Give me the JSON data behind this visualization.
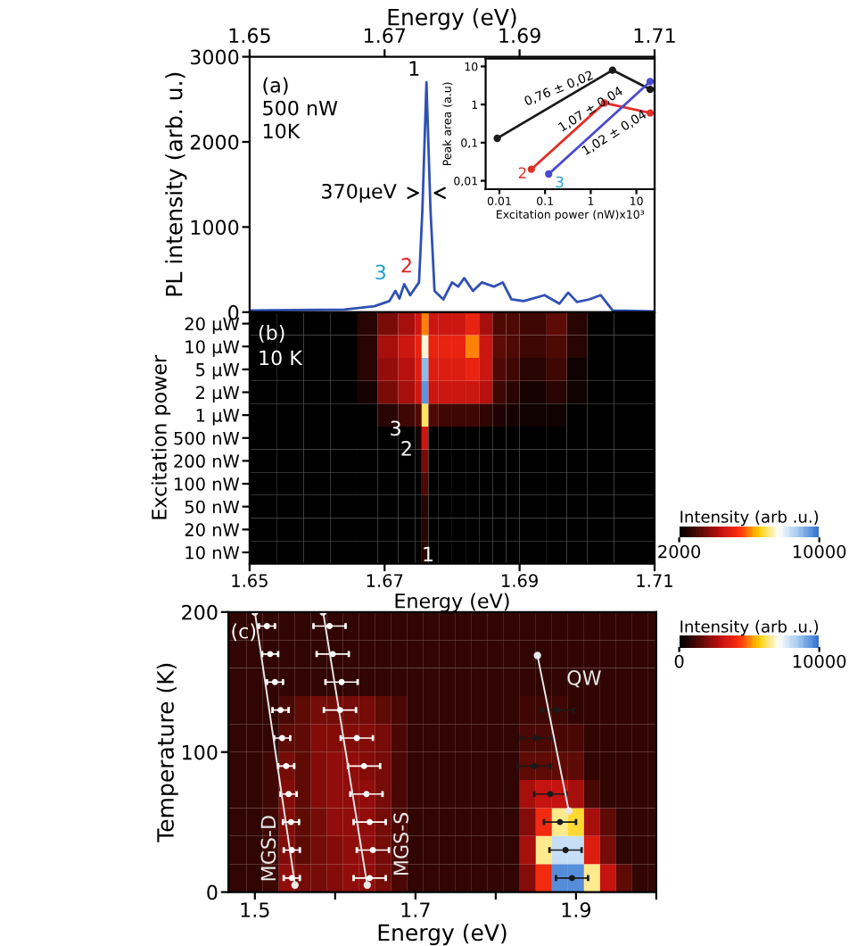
{
  "chart_data": [
    {
      "type": "line",
      "xlabel": "Energy (eV)",
      "xlim": [
        1.65,
        1.71
      ],
      "xticks": [
        1.65,
        1.67,
        1.69,
        1.71
      ],
      "ylabel": "PL intensity (arb. u.)",
      "ylim": [
        0,
        3000
      ],
      "yticks": [
        0,
        1000,
        2000,
        3000
      ],
      "series": [
        {
          "color": "#2f50b4",
          "x": [
            1.65,
            1.664,
            1.6685,
            1.6707,
            1.6716,
            1.6722,
            1.6729,
            1.6738,
            1.6751,
            1.6756,
            1.6762,
            1.6768,
            1.6774,
            1.6787,
            1.68,
            1.6809,
            1.6818,
            1.6831,
            1.6844,
            1.6862,
            1.6875,
            1.6888,
            1.6906,
            1.6937,
            1.6959,
            1.6972,
            1.6985,
            1.7003,
            1.702,
            1.7038,
            1.71
          ],
          "values": [
            20,
            30,
            70,
            130,
            250,
            160,
            330,
            200,
            350,
            1200,
            2700,
            1200,
            250,
            150,
            350,
            300,
            400,
            250,
            350,
            300,
            350,
            150,
            130,
            200,
            100,
            230,
            120,
            150,
            200,
            20,
            10
          ]
        }
      ],
      "annotations": [
        "(a)",
        "500 nW",
        "10K",
        {
          "text": "1",
          "x": 1.6762,
          "y": 2700
        },
        {
          "text": "2",
          "x": 1.6729,
          "y": 330
        },
        {
          "text": "3",
          "x": 1.6716,
          "y": 250
        },
        {
          "text": "370μeV",
          "x": 1.6762,
          "y": 1400
        }
      ]
    },
    {
      "type": "line",
      "log": "xy",
      "marker": "circle",
      "xlabel": "Excitation power (nW)x10³",
      "ylabel": "Peak area (a.u)",
      "xlim": [
        0.005,
        25
      ],
      "ylim": [
        0.006,
        16
      ],
      "xticks": [
        0.01,
        0.1,
        1,
        10
      ],
      "yticks": [
        {
          "value": 0.01,
          "label": "0,01"
        },
        {
          "value": 0.1,
          "label": "0,1"
        },
        1,
        10
      ],
      "series": [
        {
          "color": "#1a1a1a",
          "x": [
            0.009,
            3,
            20
          ],
          "values": [
            0.13,
            8,
            2.5
          ]
        },
        {
          "color": "#e0302a",
          "x": [
            0.05,
            2,
            20
          ],
          "values": [
            0.02,
            1.1,
            0.6
          ]
        },
        {
          "color": "#4a4ad0",
          "x": [
            0.12,
            20
          ],
          "values": [
            0.015,
            4
          ]
        }
      ],
      "annotations": [
        "0,76 ± 0,02",
        "1,07 ± 0,04",
        "1,02 ± 0,04",
        "2",
        "3"
      ]
    },
    {
      "type": "heatmap",
      "xlabel": "Energy (eV)",
      "ylabel": "Excitation power",
      "xlim": [
        1.65,
        1.71
      ],
      "xticks": [
        1.65,
        1.67,
        1.69,
        1.71
      ],
      "clabel": "Intensity (arb .u.)",
      "clim": [
        2000,
        10000
      ],
      "cticks": [
        2000,
        10000
      ],
      "x": [
        1.652,
        1.656,
        1.66,
        1.664,
        1.6675,
        1.6705,
        1.67325,
        1.675,
        1.676,
        1.67725,
        1.679,
        1.681,
        1.683,
        1.685,
        1.687,
        1.689,
        1.692,
        1.6955,
        1.6985,
        1.702,
        1.707
      ],
      "y_categories": [
        "20 μW",
        "10 μW",
        "5 μW",
        "2 μW",
        "1 μW",
        "500 nW",
        "200 nW",
        "100 nW",
        "50 nW",
        "20 nW",
        "10 nW"
      ],
      "cells": [
        [
          2000,
          2000,
          2000,
          2000,
          2500,
          3500,
          4000,
          4500,
          6000,
          4500,
          4500,
          4500,
          5000,
          4000,
          3000,
          3000,
          2800,
          3200,
          2500,
          2000,
          2000
        ],
        [
          2000,
          2000,
          2000,
          2000,
          2500,
          4000,
          4500,
          5000,
          7500,
          5000,
          5000,
          5000,
          6000,
          4500,
          3200,
          3000,
          2800,
          3000,
          2500,
          2000,
          2000
        ],
        [
          2000,
          2000,
          2000,
          2000,
          2500,
          3800,
          4200,
          4800,
          9000,
          4800,
          4800,
          4800,
          5000,
          4500,
          3000,
          2800,
          2500,
          2800,
          2200,
          2000,
          2000
        ],
        [
          2000,
          2000,
          2000,
          2000,
          2300,
          3500,
          4000,
          4500,
          9500,
          4500,
          4500,
          4500,
          4500,
          4200,
          2800,
          2500,
          2300,
          2500,
          2200,
          2000,
          2000
        ],
        [
          2000,
          2000,
          2000,
          2000,
          2000,
          2500,
          2800,
          3000,
          7000,
          3000,
          2800,
          2800,
          2800,
          2600,
          2400,
          2300,
          2200,
          2200,
          2000,
          2000,
          2000
        ],
        [
          2000,
          2000,
          2000,
          2000,
          2000,
          2000,
          2000,
          2300,
          4500,
          2000,
          2000,
          2000,
          2000,
          2000,
          2000,
          2000,
          2000,
          2000,
          2000,
          2000,
          2000
        ],
        [
          2000,
          2000,
          2000,
          2000,
          2000,
          2000,
          2000,
          2000,
          3500,
          2000,
          2000,
          2000,
          2000,
          2000,
          2000,
          2000,
          2000,
          2000,
          2000,
          2000,
          2000
        ],
        [
          2000,
          2000,
          2000,
          2000,
          2000,
          2000,
          2000,
          2000,
          3000,
          2000,
          2000,
          2000,
          2000,
          2000,
          2000,
          2000,
          2000,
          2000,
          2000,
          2000,
          2000
        ],
        [
          2000,
          2000,
          2000,
          2000,
          2000,
          2000,
          2000,
          2000,
          2500,
          2000,
          2000,
          2000,
          2000,
          2000,
          2000,
          2000,
          2000,
          2000,
          2000,
          2000,
          2000
        ],
        [
          2000,
          2000,
          2000,
          2000,
          2000,
          2000,
          2000,
          2000,
          2500,
          2000,
          2000,
          2000,
          2000,
          2000,
          2000,
          2000,
          2000,
          2000,
          2000,
          2000,
          2000
        ],
        [
          2000,
          2000,
          2000,
          2000,
          2000,
          2000,
          2000,
          2000,
          2500,
          2000,
          2000,
          2000,
          2000,
          2000,
          2000,
          2000,
          2000,
          2000,
          2000,
          2000,
          2000
        ]
      ],
      "annotations": [
        "(b)",
        "10 K",
        "1",
        "3",
        "2"
      ]
    },
    {
      "type": "heatmap",
      "marker": "circle",
      "xlabel": "Energy (eV)",
      "ylabel": "Temperature (K)",
      "xlim": [
        1.467,
        2.0
      ],
      "ylim": [
        0,
        200
      ],
      "xticks": [
        1.5,
        {
          "value": 1.6,
          "label": null
        },
        1.7,
        {
          "value": 1.8,
          "label": null
        },
        1.9,
        {
          "value": 2.0,
          "label": null
        }
      ],
      "yticks": [
        0,
        100,
        200
      ],
      "clabel": "Intensity (arb .u.)",
      "clim": [
        0,
        10000
      ],
      "cticks": [
        0,
        10000
      ],
      "x": [
        1.4785,
        1.5,
        1.52,
        1.54,
        1.56,
        1.58,
        1.6,
        1.62,
        1.64,
        1.66,
        1.68,
        1.7,
        1.72,
        1.74,
        1.76,
        1.78,
        1.8,
        1.82,
        1.84,
        1.86,
        1.88,
        1.9,
        1.92,
        1.94,
        1.96,
        1.98,
        1.995
      ],
      "cells": [
        [
          800,
          800,
          800,
          800,
          800,
          800,
          800,
          800,
          800,
          800,
          800,
          800,
          800,
          800,
          800,
          800,
          800,
          800,
          800,
          800,
          800,
          800,
          800,
          800,
          800,
          800,
          800
        ],
        [
          800,
          800,
          800,
          800,
          800,
          800,
          800,
          800,
          800,
          800,
          800,
          800,
          800,
          800,
          800,
          800,
          800,
          800,
          800,
          800,
          800,
          800,
          800,
          800,
          800,
          800,
          800
        ],
        [
          800,
          800,
          800,
          800,
          800,
          800,
          800,
          800,
          800,
          800,
          800,
          800,
          800,
          800,
          800,
          800,
          800,
          800,
          800,
          800,
          800,
          800,
          800,
          800,
          800,
          800,
          800
        ],
        [
          800,
          800,
          800,
          1200,
          1500,
          1800,
          1800,
          1800,
          1800,
          1500,
          1200,
          800,
          800,
          800,
          800,
          800,
          800,
          800,
          1000,
          1000,
          1000,
          800,
          800,
          800,
          800,
          800,
          800
        ],
        [
          800,
          800,
          800,
          1500,
          1500,
          2000,
          2000,
          2000,
          2000,
          1800,
          1200,
          800,
          800,
          800,
          800,
          800,
          800,
          800,
          1200,
          1200,
          1200,
          1200,
          800,
          800,
          800,
          800,
          800
        ],
        [
          800,
          800,
          1000,
          1800,
          1500,
          2000,
          2200,
          2200,
          2000,
          1800,
          1200,
          800,
          800,
          800,
          800,
          800,
          800,
          800,
          1500,
          1500,
          1500,
          1500,
          800,
          800,
          800,
          800,
          800
        ],
        [
          800,
          800,
          1000,
          2000,
          1500,
          2000,
          2200,
          2200,
          2200,
          1800,
          1200,
          800,
          800,
          800,
          800,
          800,
          800,
          800,
          2500,
          3000,
          3000,
          2500,
          1200,
          800,
          800,
          800,
          800
        ],
        [
          800,
          800,
          1000,
          2000,
          1500,
          1800,
          2200,
          2200,
          2200,
          1800,
          1200,
          800,
          800,
          800,
          800,
          800,
          800,
          800,
          2000,
          4000,
          6500,
          6000,
          2500,
          1500,
          800,
          800,
          800
        ],
        [
          800,
          800,
          1000,
          2000,
          1500,
          1800,
          2000,
          2200,
          2200,
          1800,
          1200,
          800,
          800,
          800,
          800,
          800,
          800,
          800,
          2500,
          6500,
          8000,
          8000,
          3500,
          1800,
          800,
          800,
          800
        ],
        [
          800,
          800,
          1000,
          2200,
          1800,
          1800,
          2000,
          2200,
          2200,
          1800,
          1200,
          800,
          800,
          800,
          800,
          800,
          800,
          800,
          2000,
          4000,
          9500,
          9500,
          6500,
          3000,
          1500,
          800,
          800
        ]
      ],
      "series": [
        {
          "type": "scatter",
          "color": "#ffffff",
          "x": [
            1.515,
            1.519,
            1.525,
            1.532,
            1.534,
            1.539,
            1.542,
            1.545,
            1.546,
            1.546
          ],
          "values": [
            190,
            170,
            150,
            130,
            110,
            90,
            70,
            50,
            30,
            10
          ],
          "xerrors": [
            0.01,
            0.01,
            0.01,
            0.01,
            0.01,
            0.01,
            0.01,
            0.01,
            0.01,
            0.01
          ]
        },
        {
          "type": "scatter",
          "color": "#ffffff",
          "x": [
            1.593,
            1.597,
            1.608,
            1.606,
            1.627,
            1.636,
            1.639,
            1.643,
            1.647,
            1.643
          ],
          "values": [
            190,
            170,
            150,
            130,
            110,
            90,
            70,
            50,
            30,
            10
          ],
          "xerrors": [
            0.02,
            0.02,
            0.02,
            0.02,
            0.02,
            0.02,
            0.02,
            0.02,
            0.02,
            0.02
          ]
        },
        {
          "type": "scatter",
          "color": "#1a1a1a",
          "x": [
            1.877,
            1.851,
            1.848,
            1.868,
            1.88,
            1.887,
            1.895
          ],
          "values": [
            130,
            110,
            90,
            70,
            50,
            30,
            10
          ],
          "xerrors": [
            0.02,
            0.02,
            0.02,
            0.02,
            0.02,
            0.02,
            0.02
          ]
        },
        {
          "type": "line",
          "name": "MGS-D",
          "color": "#e8e8e8",
          "x": [
            1.5,
            1.55
          ],
          "values": [
            200,
            5
          ]
        },
        {
          "type": "line",
          "name": "MGS-S",
          "color": "#e8e8e8",
          "x": [
            1.585,
            1.64
          ],
          "values": [
            200,
            5
          ]
        },
        {
          "type": "line",
          "name": "QW",
          "color": "#e8e8e8",
          "x": [
            1.852,
            1.891
          ],
          "values": [
            169,
            58
          ]
        }
      ],
      "annotations": [
        "(c)"
      ]
    }
  ]
}
